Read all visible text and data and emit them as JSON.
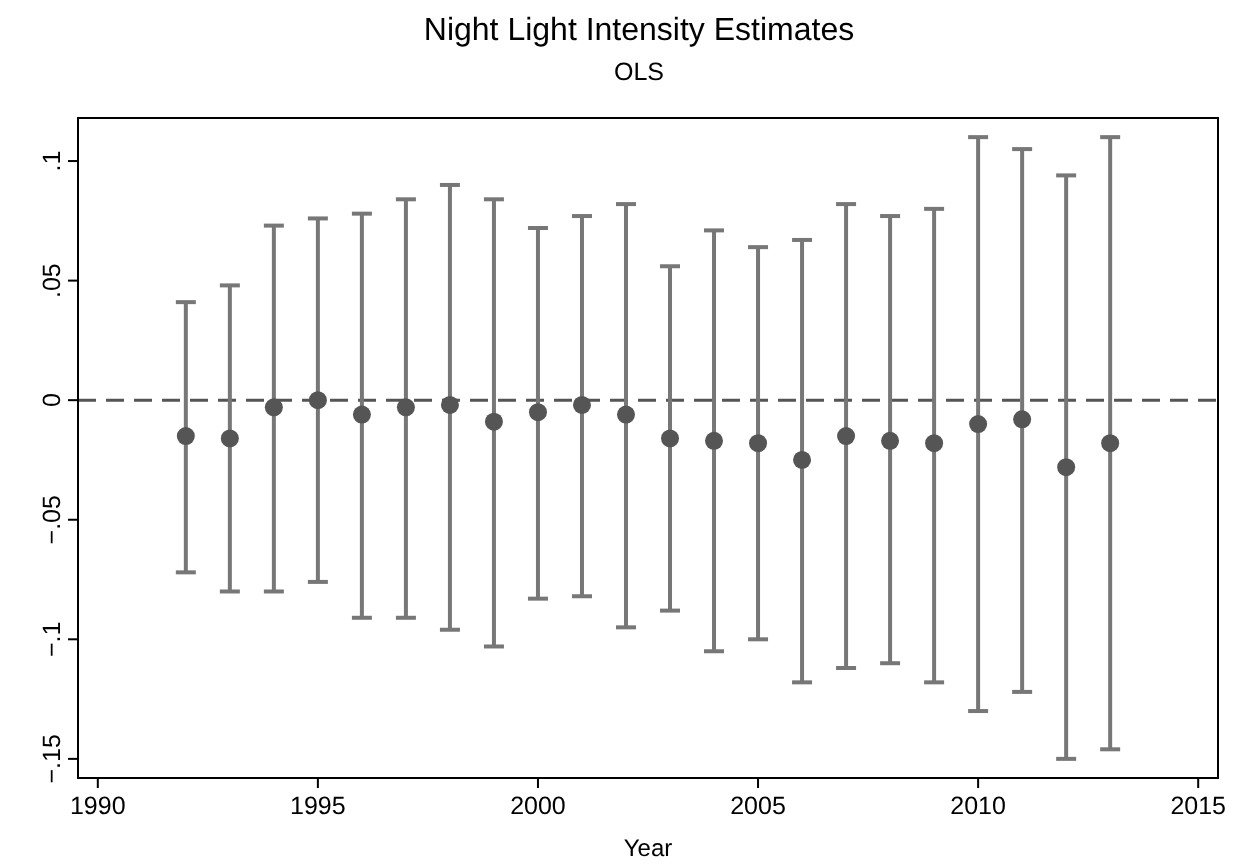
{
  "chart_data": {
    "type": "scatter",
    "title": "Night Light Intensity Estimates",
    "subtitle": "OLS",
    "xlabel": "Year",
    "x": [
      1992,
      1993,
      1994,
      1995,
      1996,
      1997,
      1998,
      1999,
      2000,
      2001,
      2002,
      2003,
      2004,
      2005,
      2006,
      2007,
      2008,
      2009,
      2010,
      2011,
      2012,
      2013
    ],
    "series": [
      {
        "color": "#555555",
        "values": [
          -0.015,
          -0.016,
          -0.003,
          0.0,
          -0.006,
          -0.003,
          -0.002,
          -0.009,
          -0.005,
          -0.002,
          -0.006,
          -0.016,
          -0.017,
          -0.018,
          -0.025,
          -0.015,
          -0.017,
          -0.018,
          -0.01,
          -0.008,
          -0.028,
          -0.018
        ],
        "errors": [
          [
            -0.072,
            0.041
          ],
          [
            -0.08,
            0.048
          ],
          [
            -0.08,
            0.073
          ],
          [
            -0.076,
            0.076
          ],
          [
            -0.091,
            0.078
          ],
          [
            -0.091,
            0.084
          ],
          [
            -0.096,
            0.09
          ],
          [
            -0.103,
            0.084
          ],
          [
            -0.083,
            0.072
          ],
          [
            -0.082,
            0.077
          ],
          [
            -0.095,
            0.082
          ],
          [
            -0.088,
            0.056
          ],
          [
            -0.105,
            0.071
          ],
          [
            -0.1,
            0.064
          ],
          [
            -0.118,
            0.067
          ],
          [
            -0.112,
            0.082
          ],
          [
            -0.11,
            0.077
          ],
          [
            -0.118,
            0.08
          ],
          [
            -0.13,
            0.11
          ],
          [
            -0.122,
            0.105
          ],
          [
            -0.15,
            0.094
          ],
          [
            -0.146,
            0.11
          ]
        ]
      }
    ],
    "xlim": [
      1989.55,
      2015.45
    ],
    "xticks": [
      1990,
      1995,
      2000,
      2005,
      2010,
      2015
    ],
    "ylim": [
      -0.158,
      0.118
    ],
    "yticks": [
      {
        "value": -0.15,
        "label": "−.15"
      },
      {
        "value": -0.1,
        "label": "−.1"
      },
      {
        "value": -0.05,
        "label": "−.05"
      },
      {
        "value": 0,
        "label": "0"
      },
      {
        "value": 0.05,
        "label": ".05"
      },
      {
        "value": 0.1,
        "label": ".1"
      }
    ],
    "ref_lines": [
      {
        "axis": "y",
        "value": 0,
        "color": "#555555",
        "line_style": "dashed"
      }
    ],
    "marker": "circle",
    "grid": false
  }
}
